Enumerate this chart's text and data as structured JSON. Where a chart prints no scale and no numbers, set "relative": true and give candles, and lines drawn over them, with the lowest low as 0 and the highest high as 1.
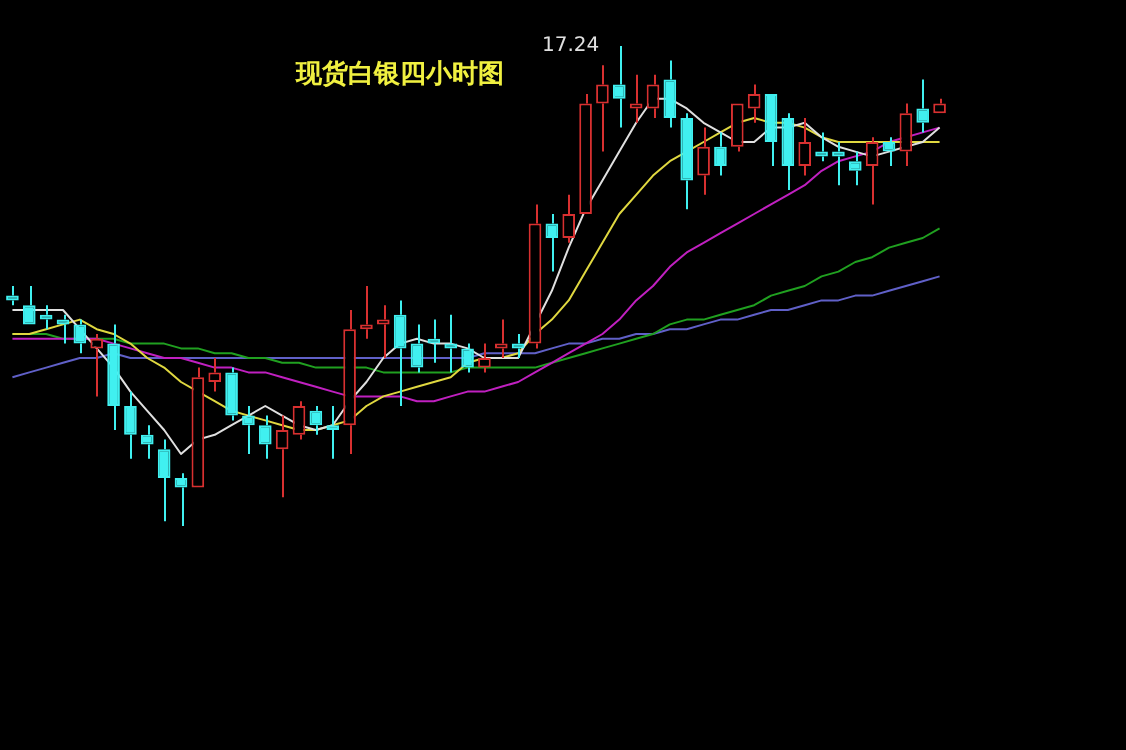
{
  "chart_data": {
    "type": "candlestick",
    "title": "现货白银四小时图",
    "relative": true,
    "categories": [
      null,
      null,
      null,
      null,
      null,
      null,
      null,
      null,
      null,
      null,
      null,
      null,
      null,
      null,
      null,
      null,
      null,
      null,
      null,
      null,
      null,
      null,
      null,
      null,
      null,
      null,
      null,
      null,
      null,
      null,
      null,
      null,
      null,
      null,
      null,
      null,
      null,
      null,
      null,
      null,
      null,
      null,
      null,
      null,
      null,
      null,
      null,
      null,
      null,
      null,
      null,
      null,
      null,
      null,
      null,
      null
    ],
    "colors": [
      "#40f0f0",
      "#40f0f0",
      "#40f0f0",
      "#40f0f0",
      "#40f0f0",
      "#d83030",
      "#40f0f0",
      "#40f0f0",
      "#40f0f0",
      "#40f0f0",
      "#40f0f0",
      "#d83030",
      "#d83030",
      "#40f0f0",
      "#40f0f0",
      "#40f0f0",
      "#d83030",
      "#d83030",
      "#40f0f0",
      "#40f0f0",
      "#d83030",
      "#d83030",
      "#d83030",
      "#40f0f0",
      "#40f0f0",
      "#40f0f0",
      "#40f0f0",
      "#40f0f0",
      "#d83030",
      "#d83030",
      "#40f0f0",
      "#d83030",
      "#40f0f0",
      "#d83030",
      "#d83030",
      "#d83030",
      "#40f0f0",
      "#d83030",
      "#d83030",
      "#40f0f0",
      "#40f0f0",
      "#d83030",
      "#40f0f0",
      "#d83030",
      "#d83030",
      "#40f0f0",
      "#40f0f0",
      "#d83030",
      "#40f0f0",
      "#40f0f0",
      "#40f0f0",
      "#d83030",
      "#40f0f0",
      "#d83030",
      "#40f0f0",
      "#d83030"
    ],
    "ohlc": [
      [
        0.48,
        0.5,
        0.46,
        0.47
      ],
      [
        0.46,
        0.5,
        0.42,
        0.42
      ],
      [
        0.44,
        0.46,
        0.41,
        0.43
      ],
      [
        0.43,
        0.44,
        0.38,
        0.42
      ],
      [
        0.42,
        0.43,
        0.36,
        0.38
      ],
      [
        0.37,
        0.4,
        0.27,
        0.39
      ],
      [
        0.38,
        0.42,
        0.2,
        0.25
      ],
      [
        0.25,
        0.28,
        0.14,
        0.19
      ],
      [
        0.19,
        0.21,
        0.14,
        0.17
      ],
      [
        0.16,
        0.18,
        0.01,
        0.1
      ],
      [
        0.1,
        0.11,
        0,
        0.08
      ],
      [
        0.08,
        0.33,
        0.08,
        0.31
      ],
      [
        0.3,
        0.35,
        0.28,
        0.32
      ],
      [
        0.32,
        0.33,
        0.22,
        0.23
      ],
      [
        0.23,
        0.25,
        0.15,
        0.21
      ],
      [
        0.21,
        0.23,
        0.14,
        0.17
      ],
      [
        0.16,
        0.23,
        0.06,
        0.2
      ],
      [
        0.19,
        0.26,
        0.18,
        0.25
      ],
      [
        0.24,
        0.25,
        0.19,
        0.21
      ],
      [
        0.21,
        0.25,
        0.14,
        0.2
      ],
      [
        0.21,
        0.45,
        0.15,
        0.41
      ],
      [
        0.41,
        0.5,
        0.39,
        0.42
      ],
      [
        0.42,
        0.46,
        0.35,
        0.43
      ],
      [
        0.44,
        0.47,
        0.25,
        0.37
      ],
      [
        0.38,
        0.42,
        0.32,
        0.33
      ],
      [
        0.39,
        0.43,
        0.34,
        0.38
      ],
      [
        0.38,
        0.44,
        0.32,
        0.37
      ],
      [
        0.37,
        0.38,
        0.32,
        0.33
      ],
      [
        0.33,
        0.38,
        0.32,
        0.35
      ],
      [
        0.37,
        0.43,
        0.35,
        0.38
      ],
      [
        0.38,
        0.4,
        0.35,
        0.37
      ],
      [
        0.38,
        0.67,
        0.37,
        0.63
      ],
      [
        0.63,
        0.65,
        0.53,
        0.6
      ],
      [
        0.6,
        0.69,
        0.59,
        0.65
      ],
      [
        0.65,
        0.9,
        0.65,
        0.88
      ],
      [
        0.88,
        0.96,
        0.78,
        0.92
      ],
      [
        0.92,
        1,
        0.83,
        0.89
      ],
      [
        0.87,
        0.94,
        0.84,
        0.88
      ],
      [
        0.87,
        0.94,
        0.85,
        0.92
      ],
      [
        0.93,
        0.97,
        0.83,
        0.85
      ],
      [
        0.85,
        0.86,
        0.66,
        0.72
      ],
      [
        0.73,
        0.83,
        0.69,
        0.79
      ],
      [
        0.79,
        0.82,
        0.73,
        0.75
      ],
      [
        0.79,
        0.88,
        0.78,
        0.88
      ],
      [
        0.87,
        0.92,
        0.84,
        0.9
      ],
      [
        0.9,
        0.9,
        0.75,
        0.8
      ],
      [
        0.85,
        0.86,
        0.7,
        0.75
      ],
      [
        0.75,
        0.85,
        0.73,
        0.8
      ],
      [
        0.78,
        0.82,
        0.76,
        0.77
      ],
      [
        0.78,
        0.8,
        0.71,
        0.77
      ],
      [
        0.76,
        0.78,
        0.71,
        0.74
      ],
      [
        0.75,
        0.81,
        0.67,
        0.8
      ],
      [
        0.8,
        0.81,
        0.75,
        0.78
      ],
      [
        0.78,
        0.88,
        0.75,
        0.86
      ],
      [
        0.87,
        0.93,
        0.82,
        0.84
      ],
      [
        0.86,
        0.89,
        0.86,
        0.88
      ]
    ],
    "series": [
      {
        "type": "line",
        "color": "#e0e0e0",
        "values": [
          0.45,
          0.45,
          0.45,
          0.45,
          0.41,
          0.37,
          0.33,
          0.28,
          0.24,
          0.2,
          0.15,
          0.18,
          0.19,
          0.21,
          0.23,
          0.25,
          0.23,
          0.21,
          0.2,
          0.21,
          0.26,
          0.3,
          0.35,
          0.38,
          0.39,
          0.38,
          0.38,
          0.37,
          0.35,
          0.35,
          0.35,
          null,
          0.49,
          0.58,
          0.66,
          0.72,
          0.78,
          0.84,
          0.89,
          0.89,
          0.87,
          0.84,
          0.82,
          0.8,
          0.8,
          0.83,
          0.83,
          0.84,
          0.81,
          0.79,
          0.78,
          0.77,
          0.78,
          0.79,
          0.8,
          0.83
        ]
      },
      {
        "type": "line",
        "color": "#e0d840",
        "values": [
          0.4,
          0.4,
          0.41,
          0.42,
          0.43,
          0.41,
          0.4,
          0.38,
          0.35,
          0.33,
          0.3,
          0.28,
          0.26,
          0.24,
          0.23,
          0.22,
          0.21,
          0.2,
          0.2,
          0.21,
          0.22,
          0.25,
          0.27,
          0.28,
          0.29,
          0.3,
          0.31,
          0.34,
          0.35,
          0.35,
          0.36,
          0.4,
          0.43,
          0.47,
          0.53,
          0.59,
          0.65,
          0.69,
          0.73,
          0.76,
          0.78,
          0.8,
          0.82,
          0.84,
          0.85,
          0.84,
          0.84,
          0.83,
          0.81,
          0.8,
          0.8,
          0.8,
          0.8,
          0.8,
          0.8,
          0.8
        ]
      },
      {
        "type": "line",
        "color": "#c020c0",
        "values": [
          0.39,
          0.39,
          0.39,
          0.39,
          0.39,
          0.39,
          0.38,
          0.37,
          0.36,
          0.35,
          0.35,
          0.34,
          0.33,
          0.33,
          0.32,
          0.32,
          0.31,
          0.3,
          0.29,
          0.28,
          0.27,
          0.27,
          0.27,
          0.27,
          0.26,
          0.26,
          0.27,
          0.28,
          0.28,
          0.29,
          0.3,
          0.32,
          0.34,
          0.36,
          0.38,
          0.4,
          0.43,
          0.47,
          0.5,
          0.54,
          0.57,
          0.59,
          0.61,
          0.63,
          0.65,
          0.67,
          0.69,
          0.71,
          0.74,
          0.76,
          0.77,
          0.78,
          0.8,
          0.81,
          0.82,
          0.83
        ]
      },
      {
        "type": "line",
        "color": "#20a020",
        "values": [
          0.4,
          0.4,
          0.4,
          0.39,
          0.39,
          0.39,
          0.39,
          0.38,
          0.38,
          0.38,
          0.37,
          0.37,
          0.36,
          0.36,
          0.35,
          0.35,
          0.34,
          0.34,
          0.33,
          0.33,
          0.33,
          0.33,
          0.32,
          0.32,
          0.32,
          0.32,
          0.32,
          0.33,
          0.33,
          0.33,
          0.33,
          0.33,
          0.34,
          0.35,
          0.36,
          0.37,
          0.38,
          0.39,
          0.4,
          0.42,
          0.43,
          0.43,
          0.44,
          0.45,
          0.46,
          0.48,
          0.49,
          0.5,
          0.52,
          0.53,
          0.55,
          0.56,
          0.58,
          0.59,
          0.6,
          0.62
        ]
      },
      {
        "type": "line",
        "color": "#6060c8",
        "values": [
          0.31,
          0.32,
          0.33,
          0.34,
          0.35,
          0.35,
          0.36,
          0.35,
          0.35,
          0.35,
          0.35,
          0.35,
          0.35,
          0.35,
          0.35,
          0.35,
          0.35,
          0.35,
          0.35,
          0.35,
          0.35,
          0.35,
          0.35,
          0.35,
          0.35,
          0.35,
          0.35,
          0.35,
          0.36,
          0.36,
          0.36,
          0.36,
          0.37,
          0.38,
          0.38,
          0.39,
          0.39,
          0.4,
          0.4,
          0.41,
          0.41,
          0.42,
          0.43,
          0.43,
          0.44,
          0.45,
          0.45,
          0.46,
          0.47,
          0.47,
          0.48,
          0.48,
          0.49,
          0.5,
          0.51,
          0.52
        ]
      }
    ],
    "annotations": [
      "17.24"
    ]
  }
}
